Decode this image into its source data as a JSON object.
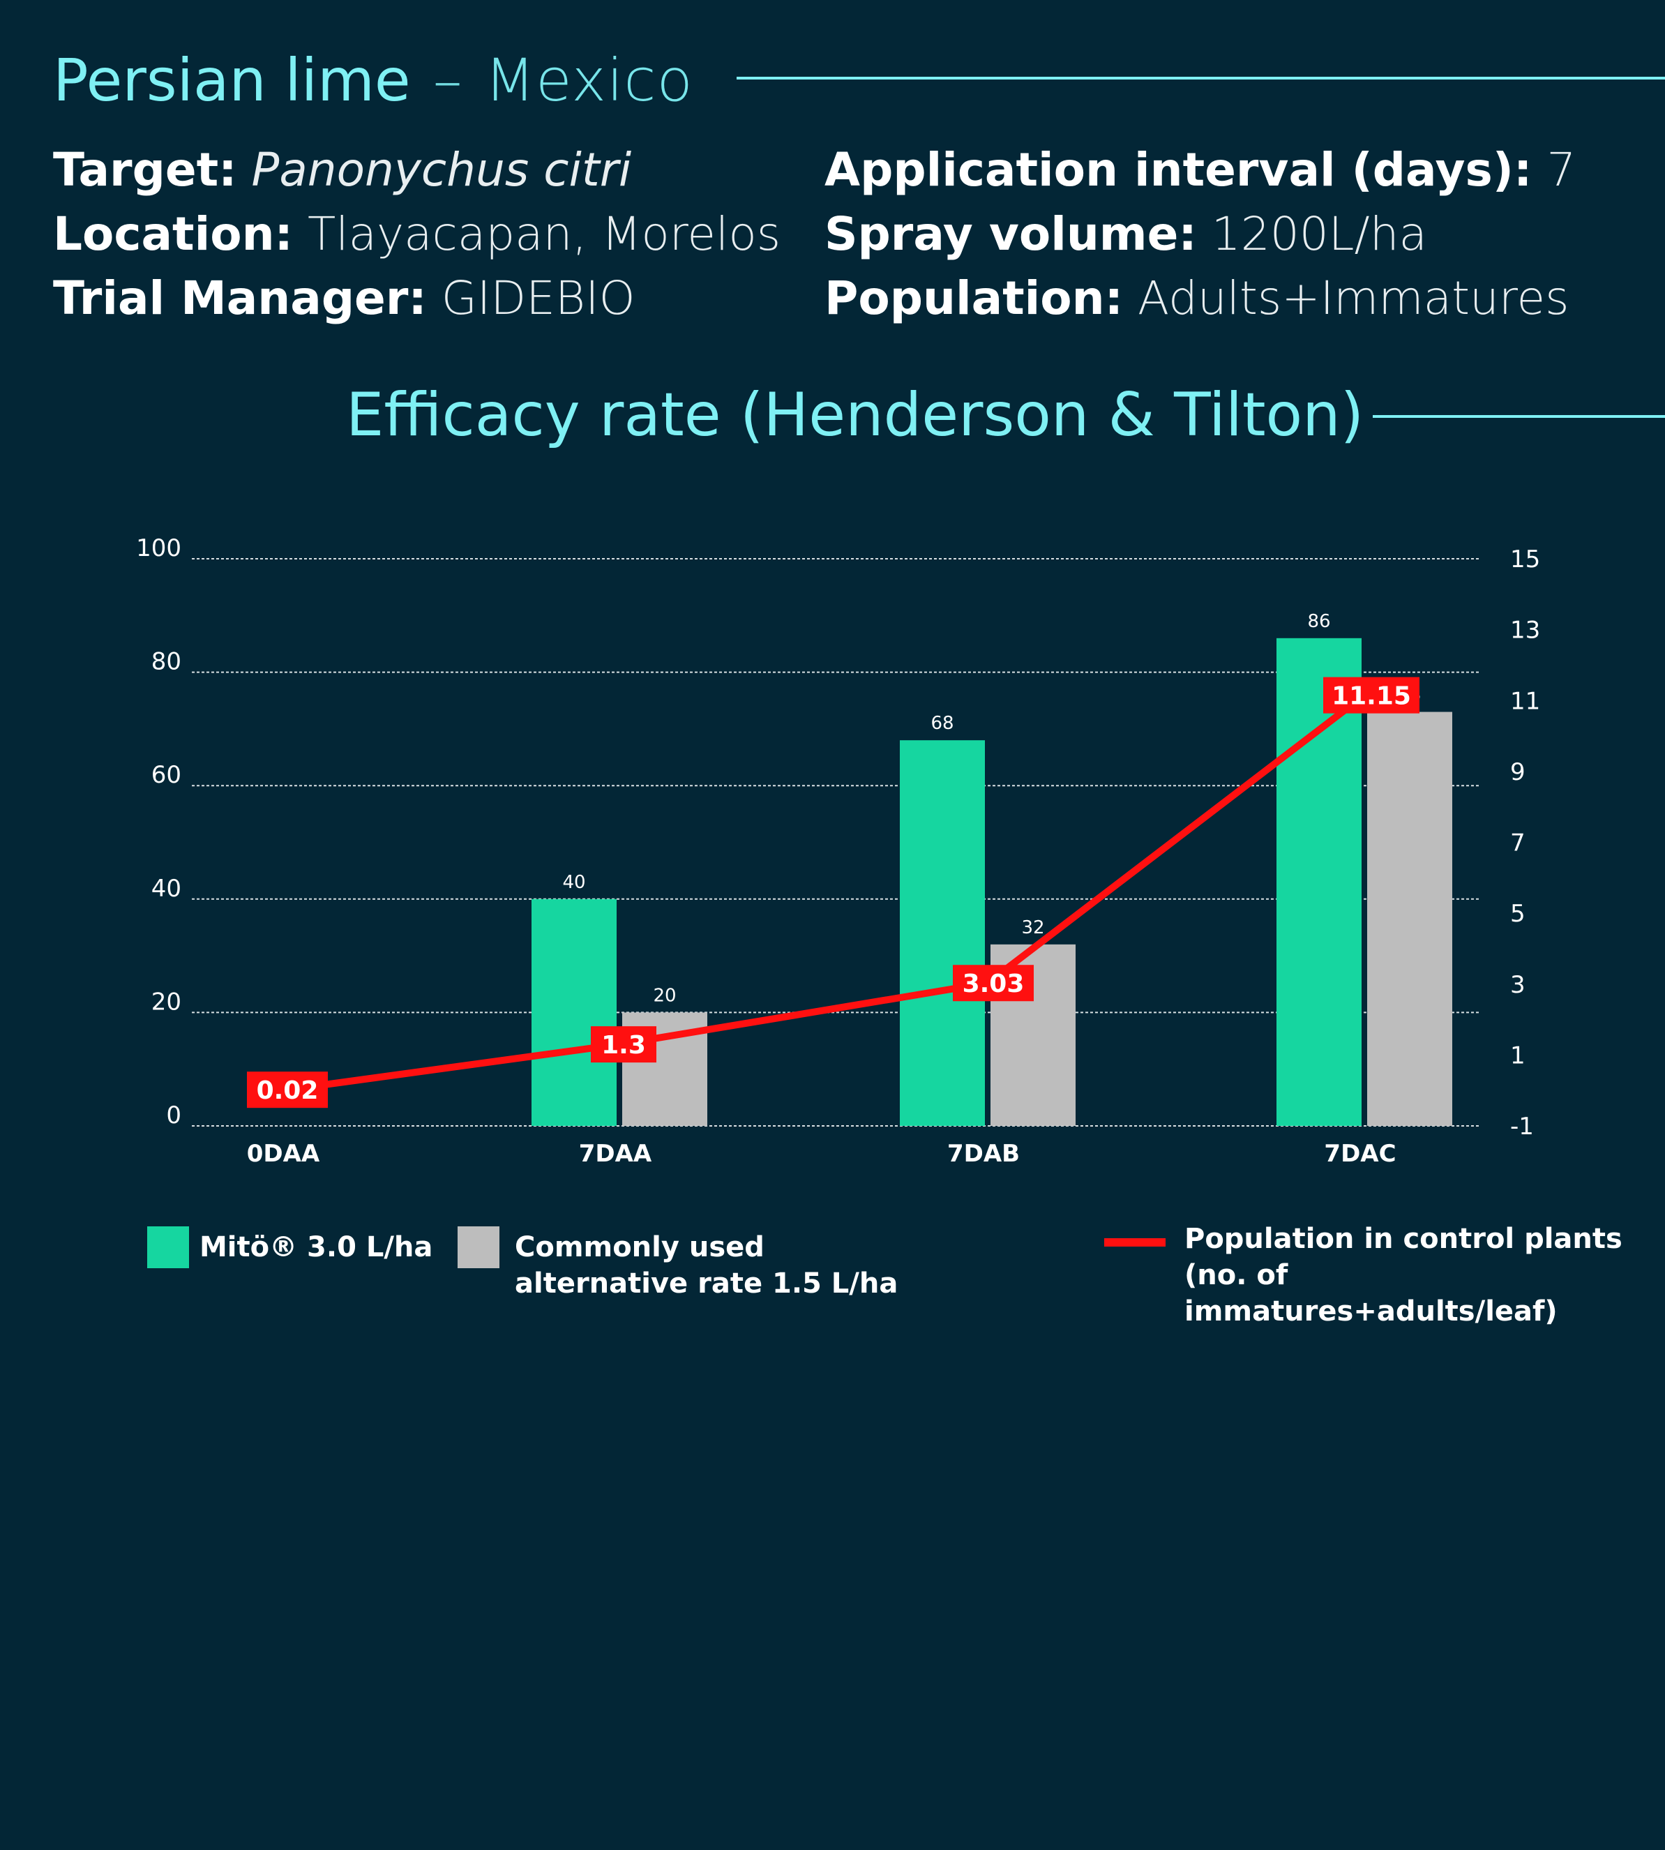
{
  "header": {
    "title": "Persian lime",
    "dash": "–",
    "subtitle": "Mexico"
  },
  "info_left": [
    {
      "label": "Target:",
      "value": "Panonychus citri",
      "italic": true
    },
    {
      "label": "Location:",
      "value": "Tlayacapan, Morelos",
      "italic": false
    },
    {
      "label": "Trial Manager:",
      "value": "GIDEBIO",
      "italic": false
    }
  ],
  "info_right": [
    {
      "label": "Application interval (days):",
      "value": "7"
    },
    {
      "label": "Spray volume:",
      "value": "1200L/ha"
    },
    {
      "label": "Population:",
      "value": "Adults+Immatures"
    }
  ],
  "colors": {
    "background": "#032636",
    "accent": "#7ff0f4",
    "mito": "#16d6a0",
    "alternative": "#bdbdbd",
    "population": "#ff1010"
  },
  "chart_data": {
    "type": "bar",
    "title": "Efficacy rate (Henderson & Tilton)",
    "categories": [
      "0DAA",
      "7DAA",
      "7DAB",
      "7DAC"
    ],
    "ylim": [
      0,
      100
    ],
    "yticks": [
      0,
      20,
      40,
      60,
      80,
      100
    ],
    "y2lim": [
      -1,
      15
    ],
    "y2ticks": [
      -1,
      1,
      3,
      5,
      7,
      9,
      11,
      13,
      15
    ],
    "grid": true,
    "series": [
      {
        "name": "Mitö® 3.0 L/ha",
        "type": "bar",
        "axis": "left",
        "values": [
          null,
          40,
          68,
          86
        ]
      },
      {
        "name": "Commonly used alternative rate 1.5 L/ha",
        "type": "bar",
        "axis": "left",
        "values": [
          null,
          20,
          32,
          73
        ]
      },
      {
        "name": "Population in control plants (no. of immatures+adults/leaf)",
        "type": "line",
        "axis": "right",
        "values": [
          0.02,
          1.3,
          3.03,
          11.15
        ]
      }
    ],
    "point_labels": [
      "0.02",
      "1.3",
      "3.03",
      "11.15"
    ]
  },
  "legend": {
    "mito": "Mitö® 3.0 L/ha",
    "alt_line1": "Commonly used",
    "alt_line2": "alternative rate 1.5 L/ha",
    "pop_line1": "Population in control plants",
    "pop_line2": "(no. of immatures+adults/leaf)"
  }
}
